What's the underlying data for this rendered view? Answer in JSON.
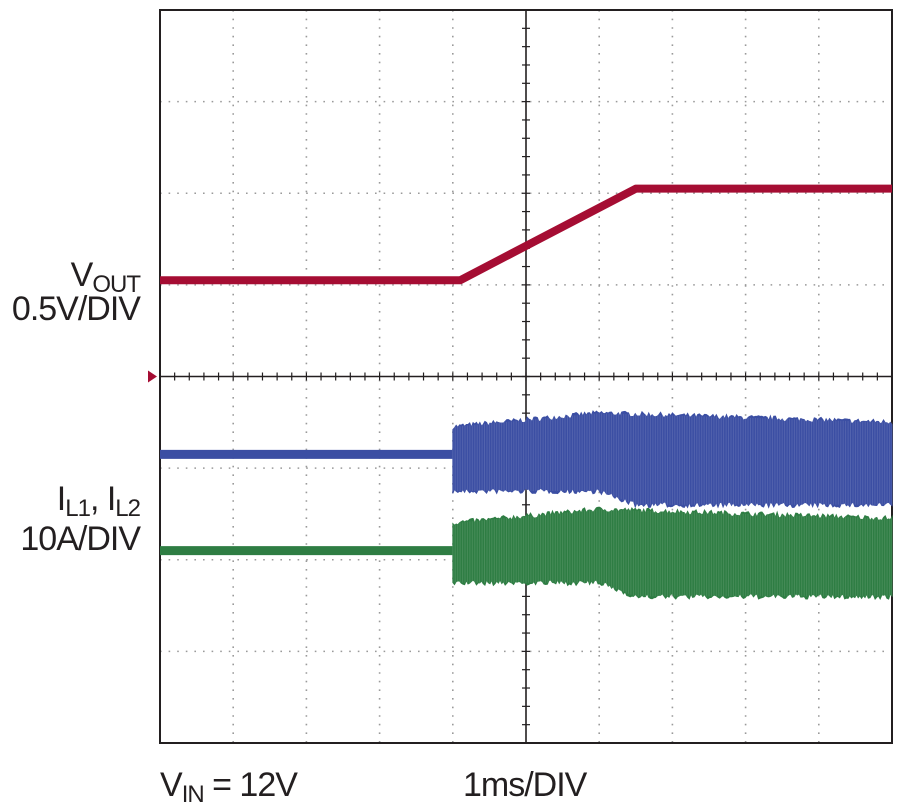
{
  "chart_data": {
    "type": "line",
    "title": "",
    "xlabel": "1ms/DIV",
    "annotation": {
      "text": "V",
      "sub": "IN",
      "suffix": " = 12V"
    },
    "x_divisions": 10,
    "y_divisions": 8,
    "grid": true,
    "x_range_div": [
      0,
      10
    ],
    "series": [
      {
        "name": "VOUT",
        "name_main": "V",
        "name_sub": "OUT",
        "scale": "0.5V/DIV",
        "color": "#a50d33",
        "style": "trace",
        "points": [
          [
            0,
            5.05
          ],
          [
            4.1,
            5.05
          ],
          [
            6.5,
            6.05
          ],
          [
            10,
            6.05
          ]
        ]
      },
      {
        "name": "IL1",
        "color": "#3b4ea3",
        "style": "ripple",
        "baseline": [
          [
            0,
            3.15
          ],
          [
            4.0,
            3.15
          ]
        ],
        "envelope_top": [
          [
            4.0,
            3.45
          ],
          [
            6.0,
            3.6
          ],
          [
            10,
            3.5
          ]
        ],
        "envelope_bottom": [
          [
            4.0,
            2.75
          ],
          [
            6.0,
            2.75
          ],
          [
            6.5,
            2.6
          ],
          [
            10,
            2.6
          ]
        ]
      },
      {
        "name": "IL2",
        "color": "#2e7d43",
        "style": "ripple",
        "baseline": [
          [
            0,
            2.1
          ],
          [
            4.0,
            2.1
          ]
        ],
        "envelope_top": [
          [
            4.0,
            2.4
          ],
          [
            6.0,
            2.55
          ],
          [
            10,
            2.45
          ]
        ],
        "envelope_bottom": [
          [
            4.0,
            1.75
          ],
          [
            6.0,
            1.75
          ],
          [
            6.5,
            1.6
          ],
          [
            10,
            1.6
          ]
        ]
      }
    ],
    "current_label": {
      "parts": [
        {
          "main": "I",
          "sub": "L1"
        },
        {
          "sep": ", "
        },
        {
          "main": "I",
          "sub": "L2"
        }
      ]
    },
    "current_scale": "10A/DIV",
    "marker_color": "#a50d33"
  }
}
